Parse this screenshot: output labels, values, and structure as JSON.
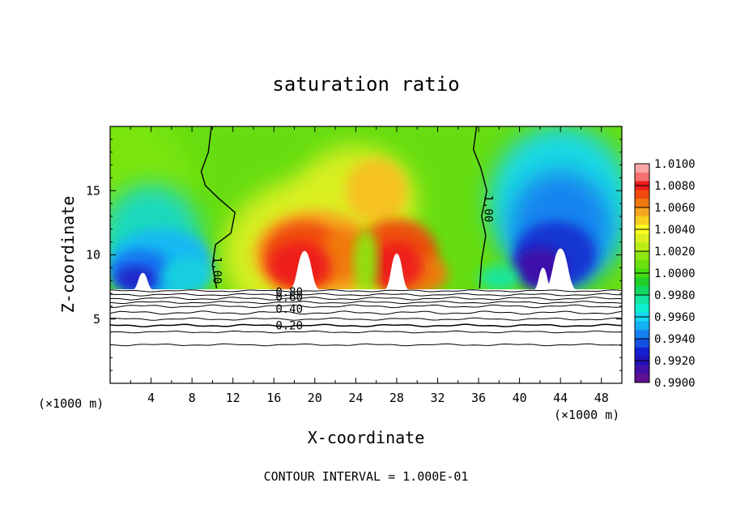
{
  "chart_data": {
    "type": "heatmap",
    "title": "saturation ratio",
    "xlabel": "X-coordinate",
    "ylabel": "Z-coordinate",
    "x_unit_left": "(×1000 m)",
    "x_unit_right": "(×1000 m)",
    "footer": "CONTOUR INTERVAL = 1.000E-01",
    "xlim": [
      0,
      50
    ],
    "ylim": [
      0,
      20
    ],
    "x_ticks": [
      4,
      8,
      12,
      16,
      20,
      24,
      28,
      32,
      36,
      40,
      44,
      48
    ],
    "y_ticks": [
      5,
      10,
      15
    ],
    "colorbar": {
      "min": 0.99,
      "max": 1.01,
      "labels": [
        "1.0100",
        "1.0080",
        "1.0060",
        "1.0040",
        "1.0020",
        "1.0000",
        "0.9980",
        "0.9960",
        "0.9940",
        "0.9920",
        "0.9900"
      ],
      "colors": [
        "#f9a6a6",
        "#f77070",
        "#ee1c1c",
        "#f04a10",
        "#f07a10",
        "#f7a520",
        "#f6d020",
        "#ffff20",
        "#dcf020",
        "#b8ec14",
        "#8ce610",
        "#6ae00e",
        "#44dd10",
        "#22d02a",
        "#10d860",
        "#12e6a0",
        "#10eed0",
        "#16d8f0",
        "#14b0f4",
        "#1480f0",
        "#1450e0",
        "#1420d0",
        "#2010b8",
        "#4010a8",
        "#601090"
      ]
    },
    "contour_labels": [
      {
        "text": "1.00",
        "x": 10.1,
        "z": 8.8
      },
      {
        "text": "1.00",
        "x": 36.6,
        "z": 13.6
      },
      {
        "text": "0.80",
        "x": 17.5,
        "z": 6.8
      },
      {
        "text": "0.60",
        "x": 17.5,
        "z": 6.4
      },
      {
        "text": "0.40",
        "x": 17.5,
        "z": 5.5
      },
      {
        "text": "0.20",
        "x": 17.5,
        "z": 4.2
      }
    ]
  }
}
